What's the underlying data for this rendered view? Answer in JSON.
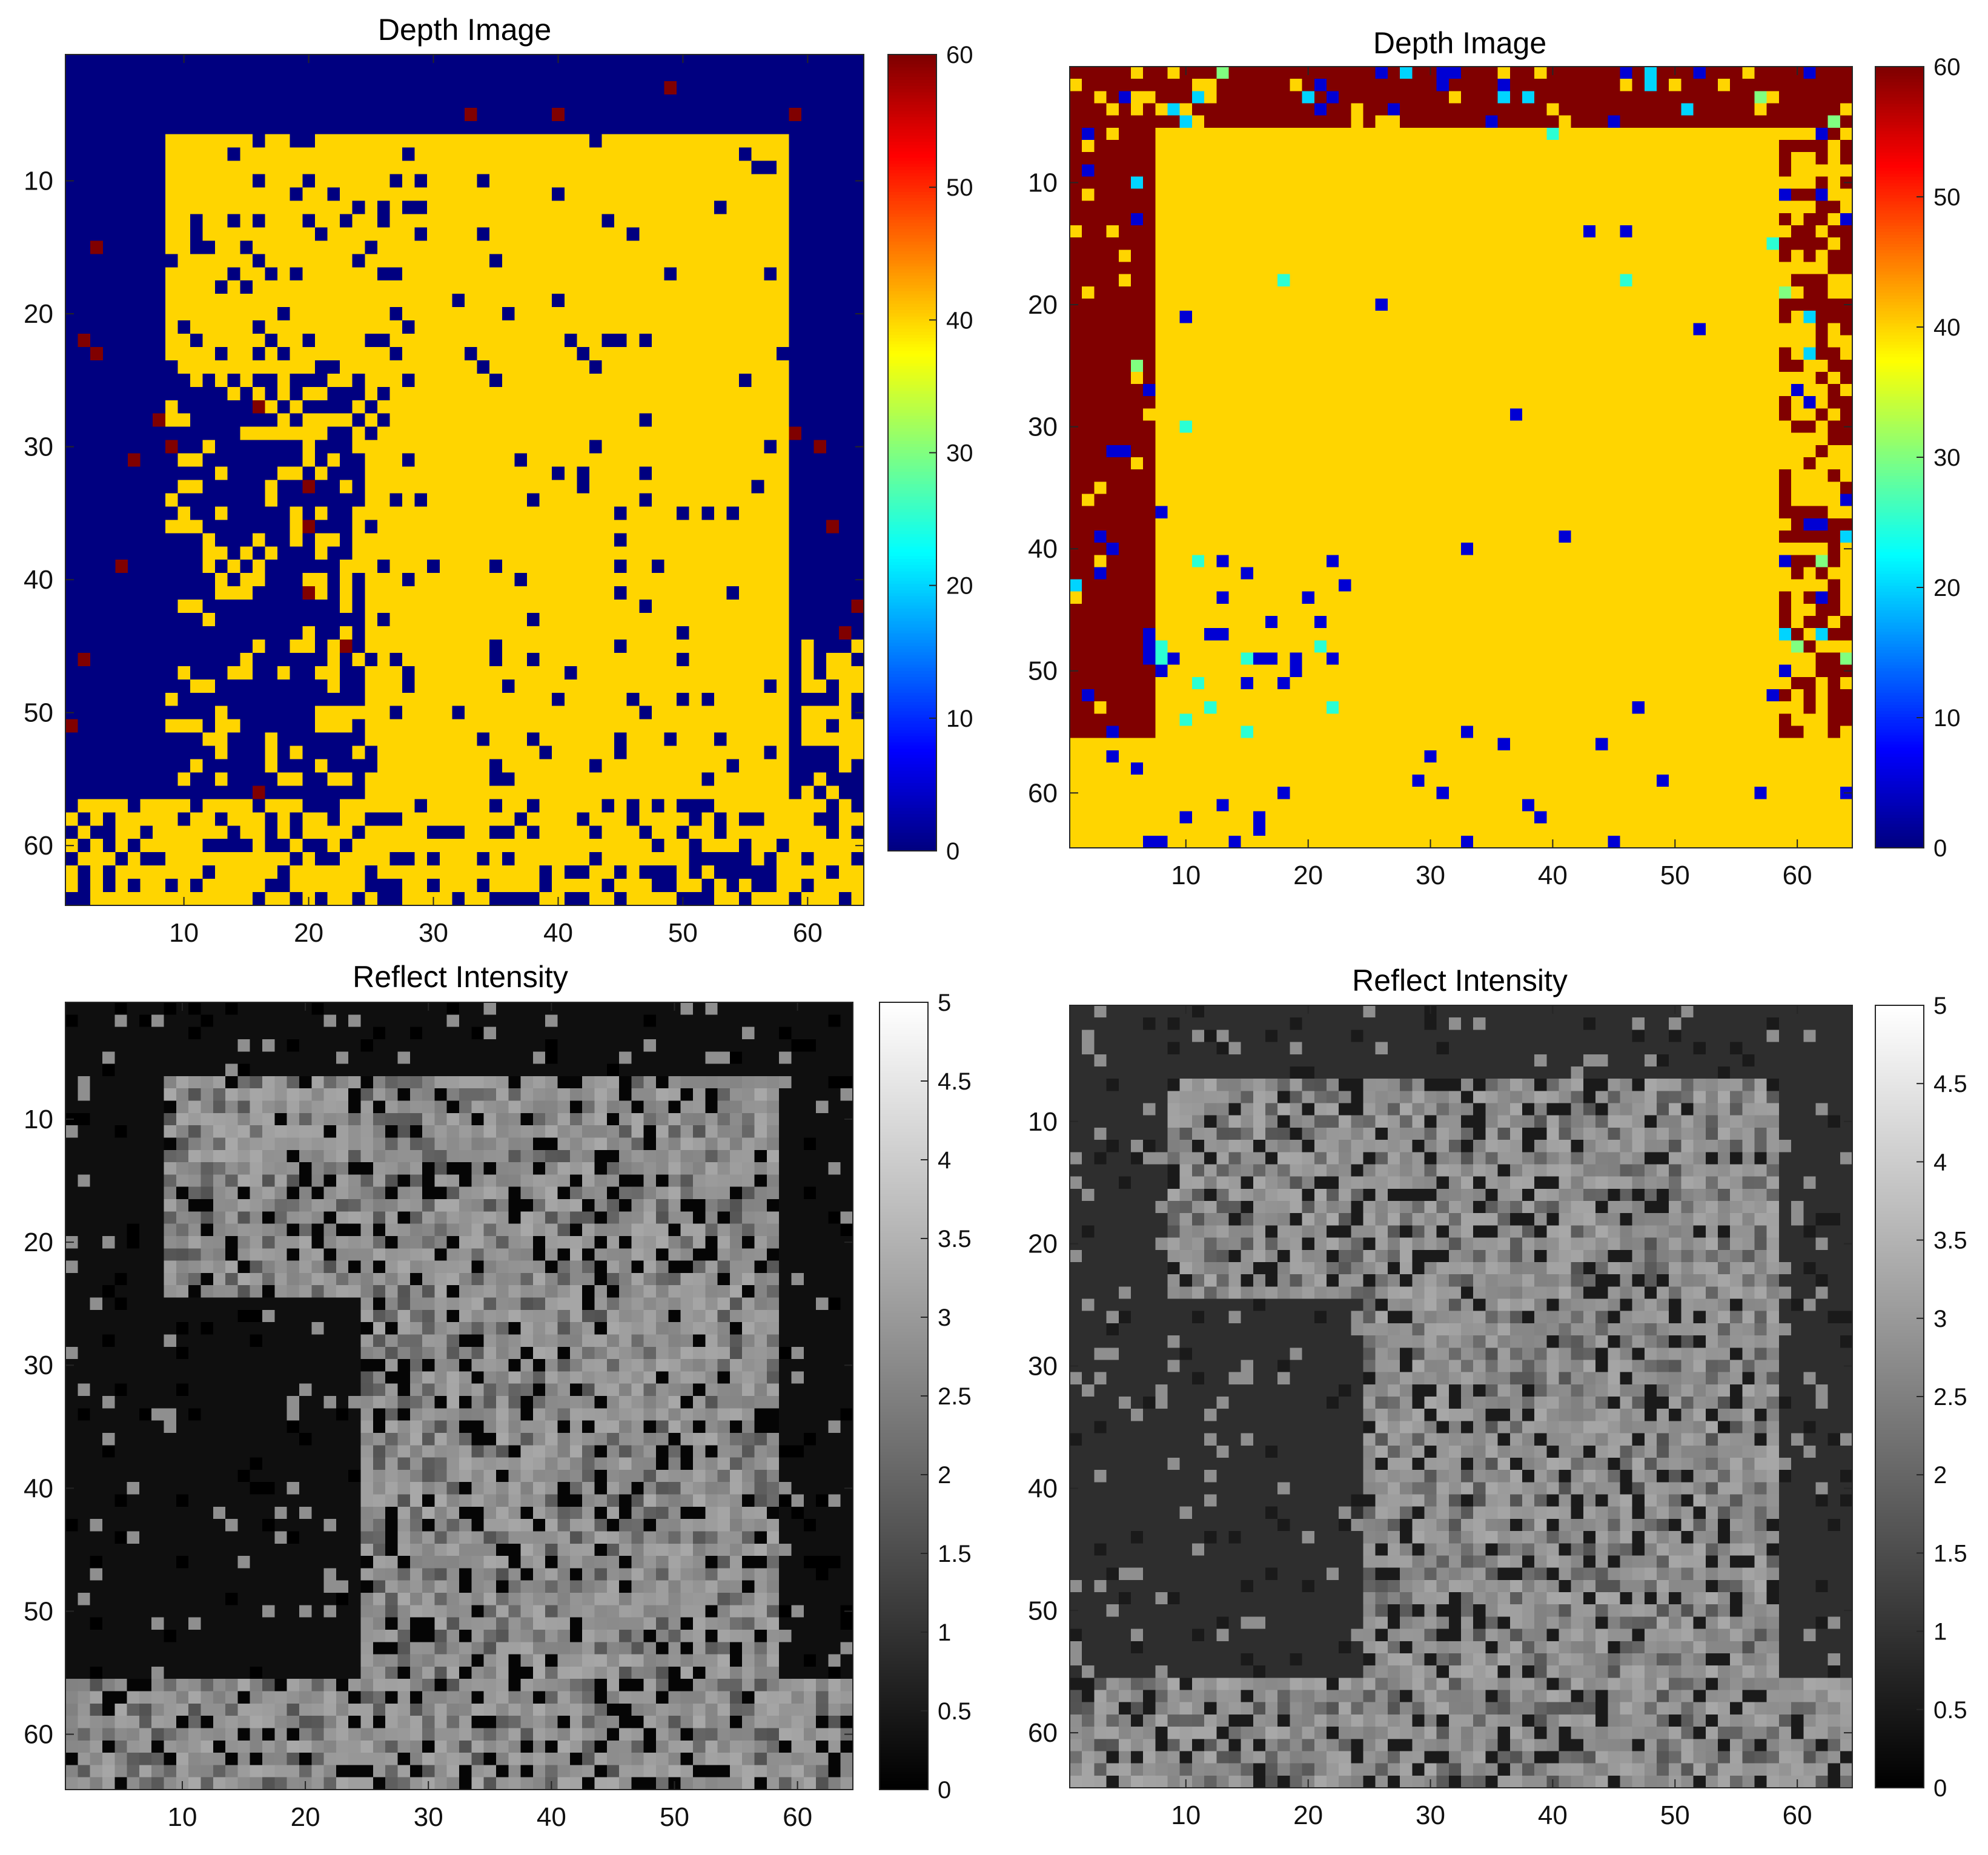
{
  "figure": {
    "colormaps": {
      "jet": "jet",
      "gray": "gray"
    }
  },
  "chart_data": [
    {
      "type": "heatmap",
      "title": "Depth Image",
      "colormap": "jet",
      "grid_size": [
        64,
        64
      ],
      "xlim": [
        0.5,
        64.5
      ],
      "ylim": [
        0.5,
        64.5
      ],
      "y_direction": "reversed",
      "x_ticks": [
        10,
        20,
        30,
        40,
        50,
        60
      ],
      "y_ticks": [
        10,
        20,
        30,
        40,
        50,
        60
      ],
      "x_tick_labels": [
        "10",
        "20",
        "30",
        "40",
        "50",
        "60"
      ],
      "y_tick_labels": [
        "10",
        "20",
        "30",
        "40",
        "50",
        "60"
      ],
      "clim": [
        0,
        60
      ],
      "colorbar_ticks": [
        0,
        10,
        20,
        30,
        40,
        50,
        60
      ],
      "colorbar_tick_labels": [
        "0",
        "10",
        "20",
        "30",
        "40",
        "50",
        "60"
      ],
      "grid": false,
      "legend": "colorbar-right",
      "regions": {
        "background_value": 0,
        "target_value": 40,
        "plate": {
          "rows": [
            7,
            56
          ],
          "cols": [
            9,
            58
          ]
        },
        "lower_left_cutout": {
          "rows": [
            25,
            56
          ],
          "cols": [
            1,
            24
          ]
        },
        "bottom_band": {
          "rows": [
            57,
            64
          ],
          "cols": [
            1,
            64
          ]
        },
        "right_edge": {
          "rows": [
            45,
            64
          ],
          "cols": [
            60,
            64
          ]
        },
        "outlier_value": 60
      }
    },
    {
      "type": "heatmap",
      "title": "Depth Image",
      "colormap": "jet",
      "grid_size": [
        64,
        64
      ],
      "xlim": [
        0.5,
        64.5
      ],
      "ylim": [
        0.5,
        64.5
      ],
      "y_direction": "reversed",
      "x_ticks": [
        10,
        20,
        30,
        40,
        50,
        60
      ],
      "y_ticks": [
        10,
        20,
        30,
        40,
        50,
        60
      ],
      "x_tick_labels": [
        "10",
        "20",
        "30",
        "40",
        "50",
        "60"
      ],
      "y_tick_labels": [
        "10",
        "20",
        "30",
        "40",
        "50",
        "60"
      ],
      "clim": [
        0,
        60
      ],
      "colorbar_ticks": [
        0,
        10,
        20,
        30,
        40,
        50,
        60
      ],
      "colorbar_tick_labels": [
        "0",
        "10",
        "20",
        "30",
        "40",
        "50",
        "60"
      ],
      "grid": false,
      "legend": "colorbar-right",
      "regions": {
        "background_value": 60,
        "target_value": 40,
        "plate": {
          "rows": [
            6,
            56
          ],
          "cols": [
            9,
            58
          ]
        },
        "left_strip": {
          "rows": [
            1,
            55
          ],
          "cols": [
            1,
            7
          ]
        },
        "top_strip": {
          "rows": [
            1,
            5
          ],
          "cols": [
            1,
            64
          ]
        },
        "right_strip": {
          "rows": [
            6,
            55
          ],
          "cols": [
            59,
            64
          ]
        },
        "bottom_band": {
          "rows": [
            56,
            64
          ],
          "cols": [
            1,
            64
          ]
        },
        "noise_values": [
          0,
          5,
          20,
          30,
          60
        ]
      }
    },
    {
      "type": "heatmap",
      "title": "Reflect Intensity",
      "colormap": "gray",
      "grid_size": [
        64,
        64
      ],
      "xlim": [
        0.5,
        64.5
      ],
      "ylim": [
        0.5,
        64.5
      ],
      "y_direction": "reversed",
      "x_ticks": [
        10,
        20,
        30,
        40,
        50,
        60
      ],
      "y_ticks": [
        10,
        20,
        30,
        40,
        50,
        60
      ],
      "x_tick_labels": [
        "10",
        "20",
        "30",
        "40",
        "50",
        "60"
      ],
      "y_tick_labels": [
        "10",
        "20",
        "30",
        "40",
        "50",
        "60"
      ],
      "clim": [
        0,
        5
      ],
      "colorbar_ticks": [
        0,
        0.5,
        1,
        1.5,
        2,
        2.5,
        3,
        3.5,
        4,
        4.5,
        5
      ],
      "colorbar_tick_labels": [
        "0",
        "0.5",
        "1",
        "1.5",
        "2",
        "2.5",
        "3",
        "3.5",
        "4",
        "4.5",
        "5"
      ],
      "grid": false,
      "legend": "colorbar-right",
      "regions": {
        "background_value": 0.3,
        "target_value": 3.0,
        "plate": {
          "rows": [
            7,
            56
          ],
          "cols": [
            9,
            58
          ]
        },
        "lower_left_cutout": {
          "rows": [
            25,
            56
          ],
          "cols": [
            1,
            24
          ]
        },
        "bottom_band": {
          "rows": [
            56,
            64
          ],
          "cols": [
            1,
            64
          ]
        }
      }
    },
    {
      "type": "heatmap",
      "title": "Reflect Intensity",
      "colormap": "gray",
      "grid_size": [
        64,
        64
      ],
      "xlim": [
        0.5,
        64.5
      ],
      "ylim": [
        0.5,
        64.5
      ],
      "y_direction": "reversed",
      "x_ticks": [
        10,
        20,
        30,
        40,
        50,
        60
      ],
      "y_ticks": [
        10,
        20,
        30,
        40,
        50,
        60
      ],
      "x_tick_labels": [
        "10",
        "20",
        "30",
        "40",
        "50",
        "60"
      ],
      "y_tick_labels": [
        "10",
        "20",
        "30",
        "40",
        "50",
        "60"
      ],
      "clim": [
        0,
        5
      ],
      "colorbar_ticks": [
        0,
        0.5,
        1,
        1.5,
        2,
        2.5,
        3,
        3.5,
        4,
        4.5,
        5
      ],
      "colorbar_tick_labels": [
        "0",
        "0.5",
        "1",
        "1.5",
        "2",
        "2.5",
        "3",
        "3.5",
        "4",
        "4.5",
        "5"
      ],
      "grid": false,
      "legend": "colorbar-right",
      "regions": {
        "background_value": 0.9,
        "target_value": 3.0,
        "plate": {
          "rows": [
            7,
            56
          ],
          "cols": [
            9,
            58
          ]
        },
        "lower_left_cutout": {
          "rows": [
            25,
            56
          ],
          "cols": [
            1,
            24
          ]
        },
        "bottom_band": {
          "rows": [
            56,
            64
          ],
          "cols": [
            1,
            64
          ]
        }
      }
    }
  ]
}
